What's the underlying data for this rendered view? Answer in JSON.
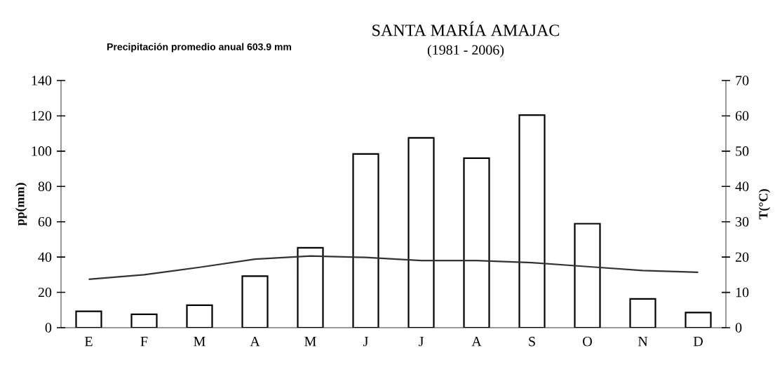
{
  "chart_data": {
    "type": "bar",
    "title": "SANTA MARÍA AMAJAC",
    "subtitle": "(1981 - 2006)",
    "annotations": [
      "Precipitación promedio anual 603.9 mm"
    ],
    "ylabel": "pp(mm)",
    "y2label": "T(°C)",
    "categories": [
      "E",
      "F",
      "M",
      "A",
      "M",
      "J",
      "J",
      "A",
      "S",
      "O",
      "N",
      "D"
    ],
    "series": [
      {
        "color": "#ffffff",
        "values": [
          9.3,
          7.6,
          12.7,
          29.2,
          45.3,
          98.4,
          107.5,
          96,
          120.4,
          58.9,
          16.3,
          8.6
        ]
      },
      {
        "type": "line",
        "axis": "y2",
        "color": "#333333",
        "values": [
          13.7,
          15.0,
          17.1,
          19.4,
          20.3,
          19.9,
          19.0,
          19.0,
          18.4,
          17.3,
          16.2,
          15.7
        ]
      }
    ],
    "ylim": [
      0,
      140
    ],
    "yticks": [
      0,
      20,
      40,
      60,
      80,
      100,
      120,
      140
    ],
    "y2lim": [
      0,
      70
    ],
    "y2ticks": [
      0,
      10,
      20,
      30,
      40,
      50,
      60,
      70
    ]
  }
}
